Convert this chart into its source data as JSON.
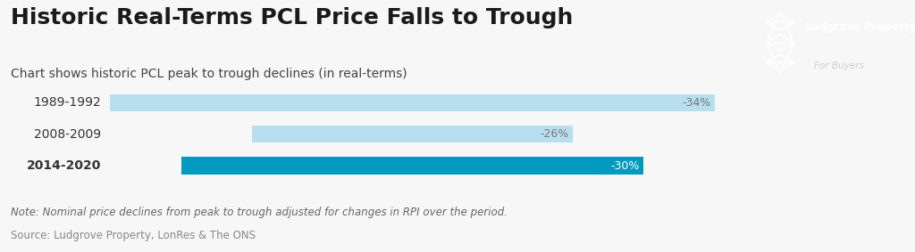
{
  "title": "Historic Real-Terms PCL Price Falls to Trough",
  "subtitle": "Chart shows historic PCL peak to trough declines (in real-terms)",
  "note": "Note: Nominal price declines from peak to trough adjusted for changes in RPI over the period.",
  "source": "Source: Ludgrove Property, LonRes & The ONS",
  "categories": [
    "1989-1992",
    "2008-2009",
    "2014-2020"
  ],
  "values": [
    34,
    26,
    30
  ],
  "bar_lefts": [
    0,
    8,
    4
  ],
  "bar_colors": [
    "#b8dff0",
    "#b8dff0",
    "#009bbf"
  ],
  "pct_labels": [
    "-34%",
    "-26%",
    "-30%"
  ],
  "label_bold": [
    false,
    false,
    true
  ],
  "pct_color_light": "#777777",
  "pct_color_dark": "#ffffff",
  "background_color": "#f7f7f7",
  "title_color": "#1a1a1a",
  "subtitle_color": "#444444",
  "note_color": "#666666",
  "source_color": "#888888",
  "title_fontsize": 18,
  "subtitle_fontsize": 10,
  "bar_label_fontsize": 9,
  "note_fontsize": 8.5,
  "logo_bg": "#222222",
  "logo_text1": "Ludgrove Property",
  "logo_text2": "For Buyers",
  "xlim_max": 36
}
